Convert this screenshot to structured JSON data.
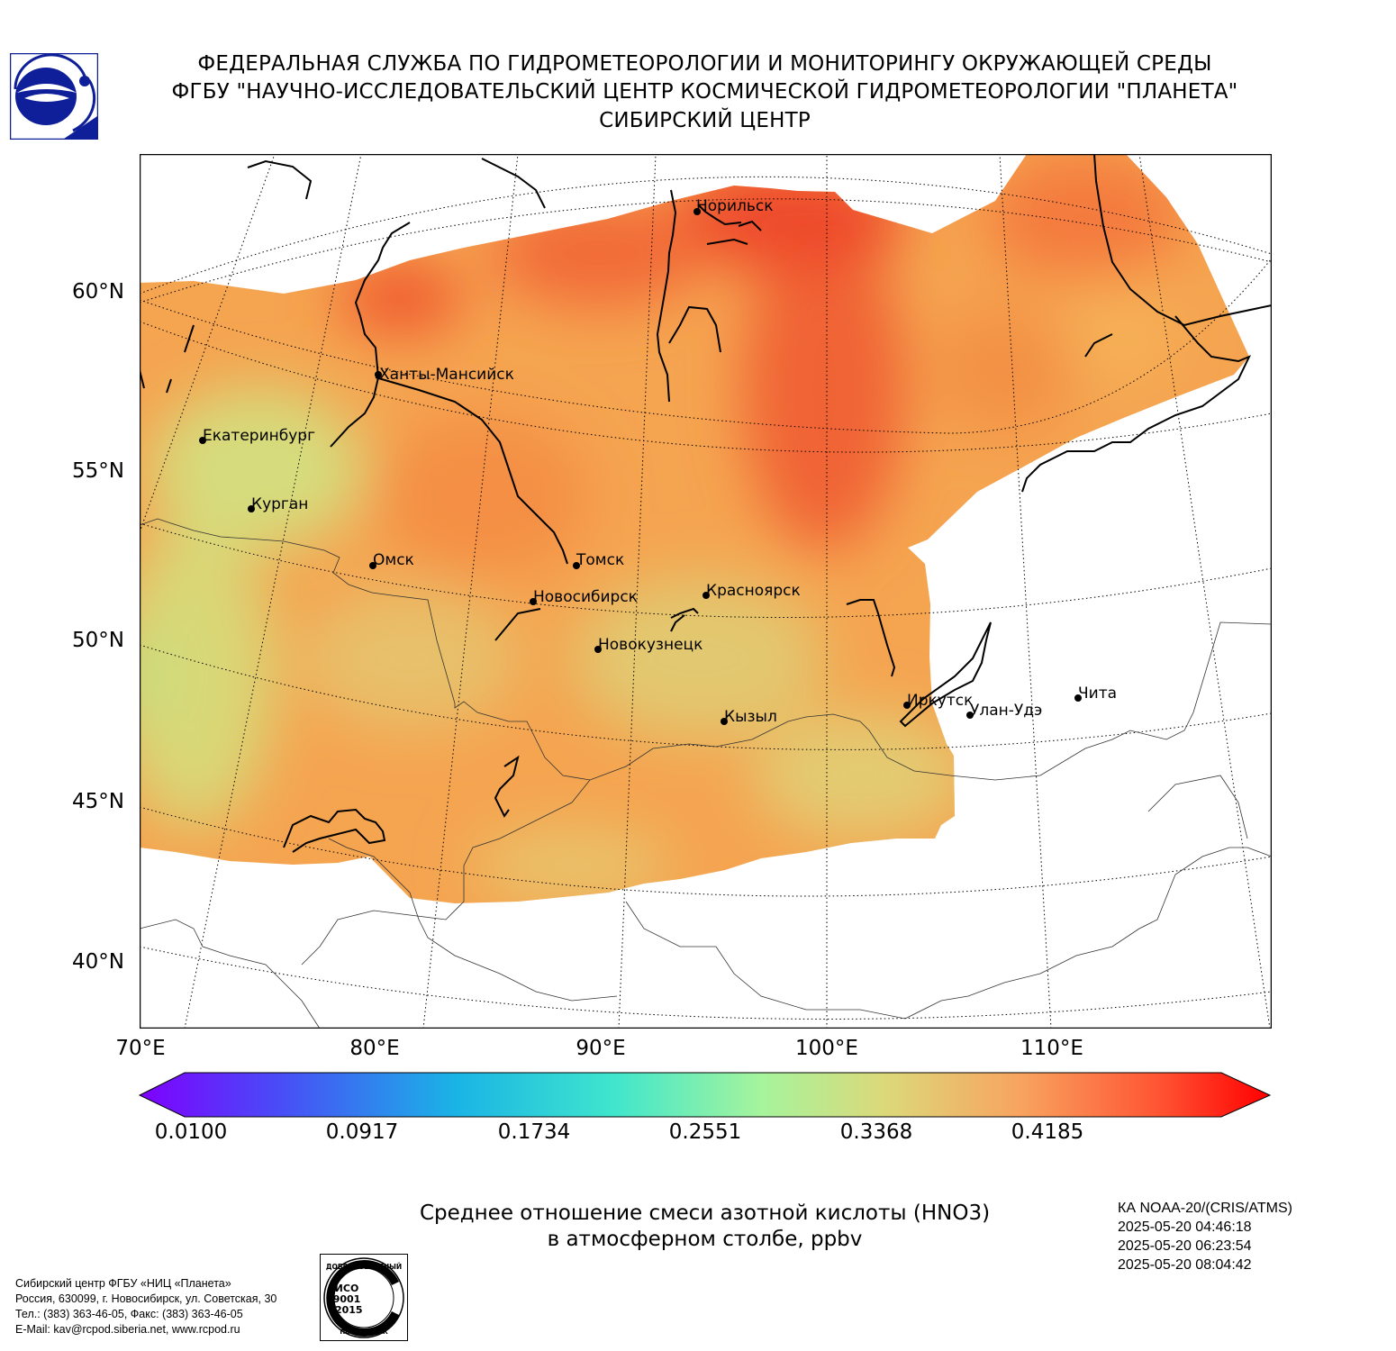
{
  "header": {
    "line1": "ФЕДЕРАЛЬНАЯ СЛУЖБА ПО ГИДРОМЕТЕОРОЛОГИИ И МОНИТОРИНГУ ОКРУЖАЮЩЕЙ СРЕДЫ",
    "line2": "ФГБУ \"НАУЧНО-ИССЛЕДОВАТЕЛЬСКИЙ ЦЕНТР КОСМИЧЕСКОЙ ГИДРОМЕТЕОРОЛОГИИ \"ПЛАНЕТА\"",
    "line3": "СИБИРСКИЙ ЦЕНТР"
  },
  "colors": {
    "logo_blue": "#0f1f9a",
    "field_low": "#d3db7a",
    "field_mid": "#f5a24f",
    "field_high": "#f0472a",
    "colorbar": [
      "#7f00ff",
      "#3b5cf5",
      "#1ab2e6",
      "#42e8c8",
      "#a8f29a",
      "#dfd97a",
      "#f9a35e",
      "#ff4a2a",
      "#ff0000"
    ]
  },
  "map": {
    "lat_labels": [
      "60°N",
      "55°N",
      "50°N",
      "45°N",
      "40°N"
    ],
    "lon_labels": [
      "70°E",
      "80°E",
      "90°E",
      "100°E",
      "110°E"
    ],
    "cities": [
      {
        "name": "Норильск"
      },
      {
        "name": "Ханты-Мансийск"
      },
      {
        "name": "Екатеринбург"
      },
      {
        "name": "Курган"
      },
      {
        "name": "Омск"
      },
      {
        "name": "Томск"
      },
      {
        "name": "Новосибирск"
      },
      {
        "name": "Красноярск"
      },
      {
        "name": "Новокузнецк"
      },
      {
        "name": "Кызыл"
      },
      {
        "name": "Иркутск"
      },
      {
        "name": "Улан-Удэ"
      },
      {
        "name": "Чита"
      }
    ]
  },
  "colorbar": {
    "ticks": [
      "0.0100",
      "0.0917",
      "0.1734",
      "0.2551",
      "0.3368",
      "0.4185"
    ]
  },
  "caption": {
    "line1": "Среднее отношение смеси азотной кислоты (HNO3)",
    "line2": "в атмосферном столбе, ppbv"
  },
  "satellite": {
    "name": "КА NOAA-20/(CRIS/ATMS)",
    "times": [
      "2025-05-20 04:46:18",
      "2025-05-20 06:23:54",
      "2025-05-20 08:04:42"
    ]
  },
  "footer": {
    "lines": [
      "Сибирский центр ФГБУ «НИЦ «Планета»",
      "Россия, 630099, г. Новосибирск, ул. Советская, 30",
      "Тел.: (383) 363-46-05, Факс: (383) 363-46-05",
      "E-Mail: kav@rcpod.siberia.net, www.rcpod.ru"
    ]
  },
  "iso_badge": {
    "top_text": "ДОБРОСОВЕСТНЫЙ",
    "bottom_text": "ПОСТАВЩИК",
    "line1": "ИСО",
    "line2": "9001",
    "line3": "-2015"
  }
}
